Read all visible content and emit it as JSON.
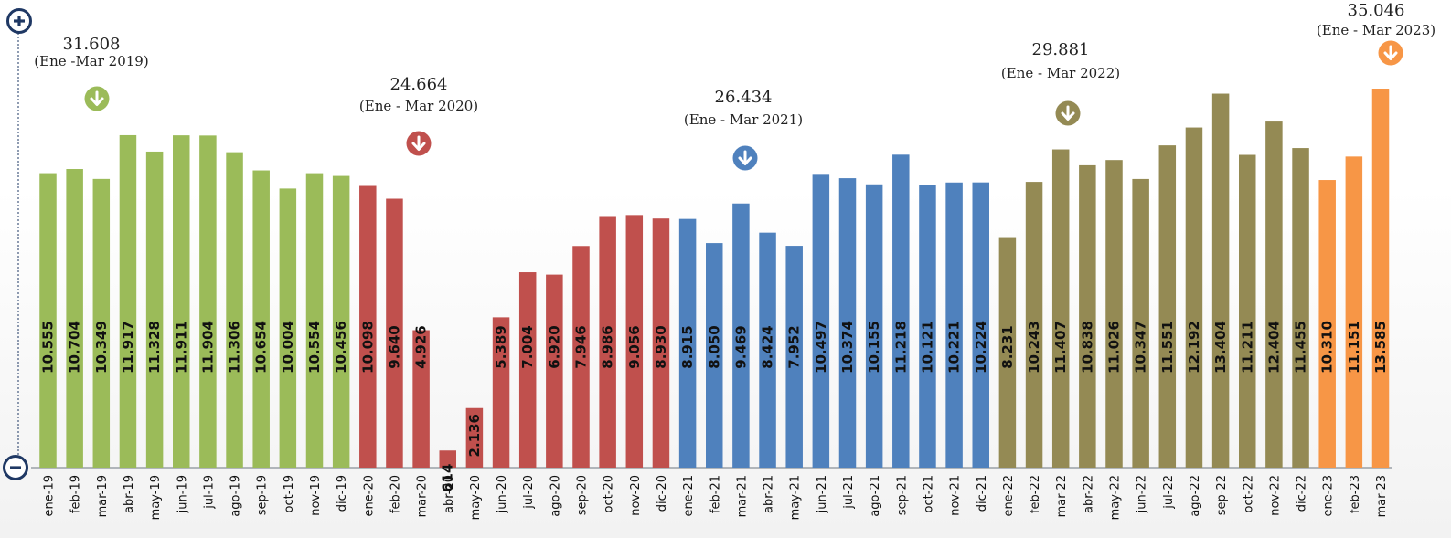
{
  "chart_data": {
    "type": "bar",
    "categories": [
      "ene-19",
      "feb-19",
      "mar-19",
      "abr-19",
      "may-19",
      "jun-19",
      "jul-19",
      "ago-19",
      "sep-19",
      "oct-19",
      "nov-19",
      "dic-19",
      "ene-20",
      "feb-20",
      "mar-20",
      "abr-20",
      "may-20",
      "jun-20",
      "jul-20",
      "ago-20",
      "sep-20",
      "oct-20",
      "nov-20",
      "dic-20",
      "ene-21",
      "feb-21",
      "mar-21",
      "abr-21",
      "may-21",
      "jun-21",
      "jul-21",
      "ago-21",
      "sep-21",
      "oct-21",
      "nov-21",
      "dic-21",
      "ene-22",
      "feb-22",
      "mar-22",
      "abr-22",
      "may-22",
      "jun-22",
      "jul-22",
      "ago-22",
      "sep-22",
      "oct-22",
      "nov-22",
      "dic-22",
      "ene-23",
      "feb-23",
      "mar-23"
    ],
    "values": [
      10555,
      10704,
      10349,
      11917,
      11328,
      11911,
      11904,
      11306,
      10654,
      10004,
      10554,
      10456,
      10098,
      9640,
      4926,
      614,
      2136,
      5389,
      7004,
      6920,
      7946,
      8986,
      9056,
      8930,
      8915,
      8050,
      9469,
      8424,
      7952,
      10497,
      10374,
      10155,
      11218,
      10121,
      10221,
      10224,
      8231,
      10243,
      11407,
      10838,
      11026,
      10347,
      11551,
      12192,
      13404,
      11211,
      12404,
      11455,
      10310,
      11151,
      13585
    ],
    "value_labels": [
      "10.555",
      "10.704",
      "10.349",
      "11.917",
      "11.328",
      "11.911",
      "11.904",
      "11.306",
      "10.654",
      "10.004",
      "10.554",
      "10.456",
      "10.098",
      "9.640",
      "4.926",
      "614",
      "2.136",
      "5.389",
      "7.004",
      "6.920",
      "7.946",
      "8.986",
      "9.056",
      "8.930",
      "8.915",
      "8.050",
      "9.469",
      "8.424",
      "7.952",
      "10.497",
      "10.374",
      "10.155",
      "11.218",
      "10.121",
      "10.221",
      "10.224",
      "8.231",
      "10.243",
      "11.407",
      "10.838",
      "11.026",
      "10.347",
      "11.551",
      "12.192",
      "13.404",
      "11.211",
      "12.404",
      "11.455",
      "10.310",
      "11.151",
      "13.585"
    ],
    "groups": [
      {
        "year": "2019",
        "start": 0,
        "end": 11,
        "color": "#9BBB59"
      },
      {
        "year": "2020",
        "start": 12,
        "end": 23,
        "color": "#C0504D"
      },
      {
        "year": "2021",
        "start": 24,
        "end": 35,
        "color": "#4F81BD"
      },
      {
        "year": "2022",
        "start": 36,
        "end": 47,
        "color": "#948A54"
      },
      {
        "year": "2023",
        "start": 48,
        "end": 50,
        "color": "#F79646"
      }
    ],
    "annotations": [
      {
        "total": "31.608",
        "period": "(Ene -Mar 2019)",
        "group": 0
      },
      {
        "total": "24.664",
        "period": "(Ene - Mar 2020)",
        "group": 1
      },
      {
        "total": "26.434",
        "period": "(Ene - Mar 2021)",
        "group": 2
      },
      {
        "total": "29.881",
        "period": "(Ene - Mar 2022)",
        "group": 3
      },
      {
        "total": "35.046",
        "period": "(Ene - Mar 2023)",
        "group": 4
      }
    ],
    "ylim": [
      0,
      14000
    ],
    "title": "",
    "xlabel": "",
    "ylabel": "",
    "grid": false
  },
  "controls": {
    "zoom_in_icon": "plus-circle-icon",
    "zoom_out_icon": "minus-circle-icon",
    "color": "#1F3864"
  }
}
